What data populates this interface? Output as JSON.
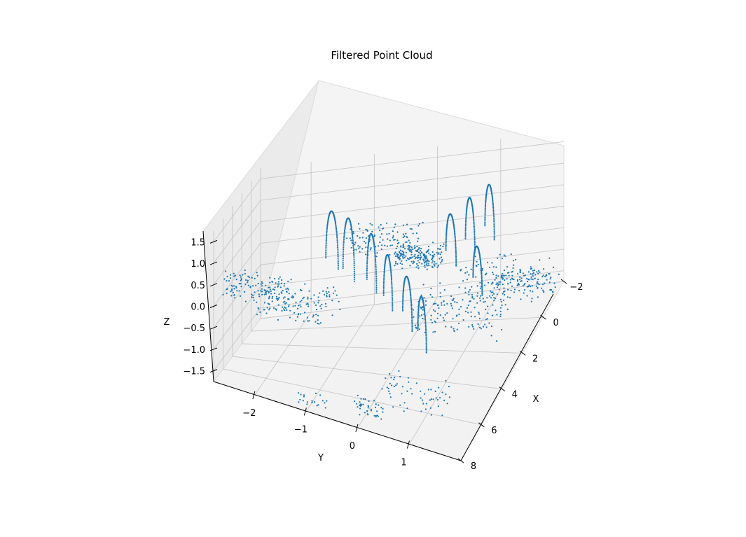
{
  "chart_data": {
    "type": "scatter",
    "projection": "3d",
    "title": "Filtered Point Cloud",
    "xlabel": "X",
    "ylabel": "Y",
    "zlabel": "Z",
    "xlim": [
      -2,
      8
    ],
    "ylim": [
      -2.8,
      2
    ],
    "zlim": [
      -1.75,
      1.75
    ],
    "xticks": [
      -2,
      0,
      2,
      4,
      6,
      8
    ],
    "yticks": [
      -2,
      -1,
      0,
      1
    ],
    "zticks": [
      -1.5,
      -1.0,
      -0.5,
      0.0,
      0.5,
      1.0,
      1.5
    ],
    "grid": true,
    "marker_color": "#1f77b4",
    "series": [
      {
        "loops": [
          {
            "xc": 1.6,
            "yc": -1.3,
            "r": 0.55,
            "z0": 0.1,
            "z1": 1.3
          },
          {
            "xc": 2.6,
            "yc": -0.9,
            "r": 0.55,
            "z0": 0.1,
            "z1": 1.4
          },
          {
            "xc": 3.4,
            "yc": -0.4,
            "r": 0.5,
            "z0": 0.1,
            "z1": 1.3
          },
          {
            "xc": 4.2,
            "yc": 0.0,
            "r": 0.5,
            "z0": 0.0,
            "z1": 1.1
          },
          {
            "xc": 5.2,
            "yc": 0.5,
            "r": 0.6,
            "z0": 0.0,
            "z1": 1.0
          },
          {
            "xc": 6.0,
            "yc": 0.9,
            "r": 0.6,
            "z0": -0.1,
            "z1": 0.9
          },
          {
            "xc": 0.8,
            "yc": 0.6,
            "r": 0.55,
            "z0": 0.0,
            "z1": 1.0
          },
          {
            "xc": 0.0,
            "yc": 0.8,
            "r": 0.5,
            "z0": 0.0,
            "z1": 1.1
          },
          {
            "xc": -0.8,
            "yc": 1.0,
            "r": 0.5,
            "z0": 0.0,
            "z1": 1.1
          },
          {
            "xc": 1.8,
            "yc": 1.2,
            "r": 0.55,
            "z0": -0.3,
            "z1": 0.6
          }
        ],
        "clusters": [
          {
            "x": 5.5,
            "y": -2.2,
            "z": 0.2,
            "spread": 0.6,
            "n": 140
          },
          {
            "x": 4.5,
            "y": -1.6,
            "z": -0.2,
            "spread": 0.7,
            "n": 120
          },
          {
            "x": 2.5,
            "y": 0.3,
            "z": 0.6,
            "spread": 0.4,
            "n": 180
          },
          {
            "x": 1.0,
            "y": -0.5,
            "z": 0.5,
            "spread": 0.6,
            "n": 120
          },
          {
            "x": 3.0,
            "y": 1.1,
            "z": -0.4,
            "spread": 0.8,
            "n": 160
          },
          {
            "x": 0.5,
            "y": 1.4,
            "z": -0.6,
            "spread": 0.7,
            "n": 120
          },
          {
            "x": -0.2,
            "y": 1.7,
            "z": -1.0,
            "spread": 0.5,
            "n": 90
          },
          {
            "x": 6.5,
            "y": 0.9,
            "z": -1.2,
            "spread": 0.6,
            "n": 60
          },
          {
            "x": 7.2,
            "y": 0.1,
            "z": -1.5,
            "spread": 0.3,
            "n": 40
          },
          {
            "x": 7.5,
            "y": -0.9,
            "z": -1.6,
            "spread": 0.3,
            "n": 20
          }
        ]
      }
    ]
  }
}
